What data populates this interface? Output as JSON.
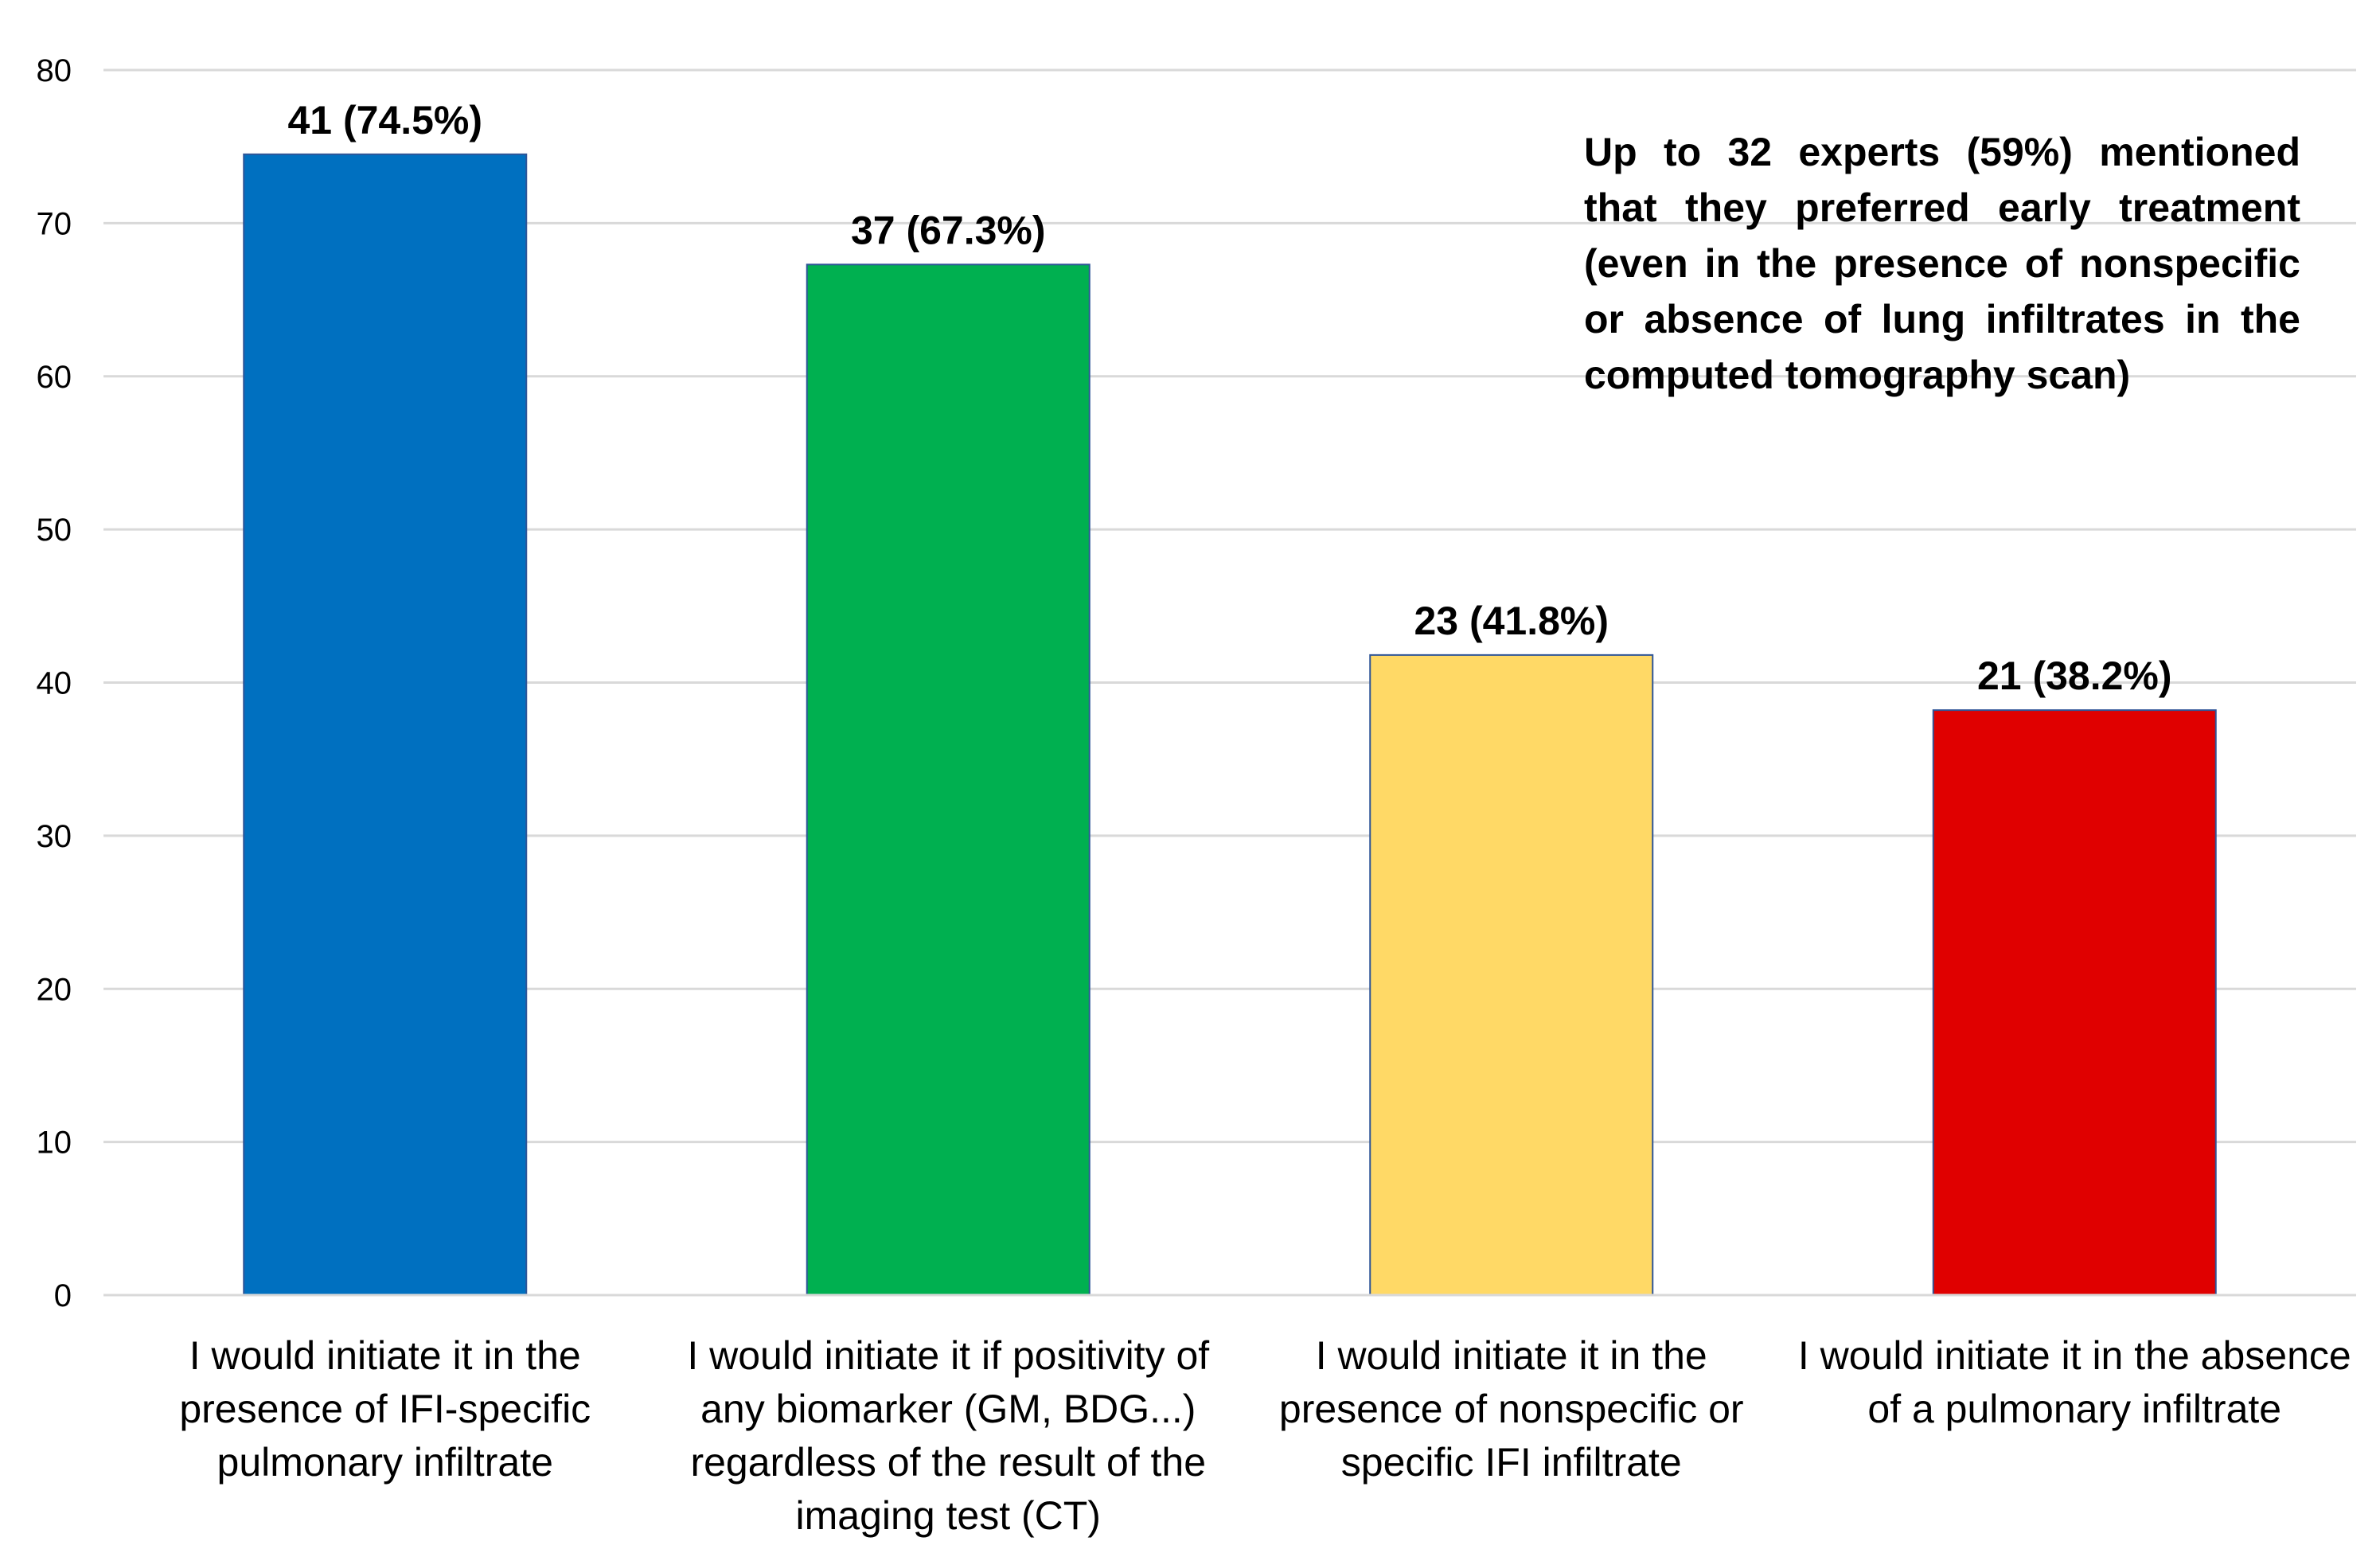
{
  "chart_data": {
    "type": "bar",
    "title": "",
    "xlabel": "",
    "ylabel": "",
    "ylim": [
      0,
      80
    ],
    "yticks": [
      0,
      10,
      20,
      30,
      40,
      50,
      60,
      70,
      80
    ],
    "grid": true,
    "categories": [
      [
        "I would initiate it in the",
        "presence of IFI-specific",
        "pulmonary infiltrate"
      ],
      [
        "I would initiate it if positivity of",
        "any biomarker (GM, BDG...)",
        "regardless of the result of the",
        "imaging test (CT)"
      ],
      [
        "I would initiate it in the",
        "presence of nonspecific or",
        "specific IFI infiltrate"
      ],
      [
        "I would initiate it in the absence",
        "of a pulmonary infiltrate"
      ]
    ],
    "values": [
      74.5,
      67.3,
      41.8,
      38.2
    ],
    "data_labels": [
      "41 (74.5%)",
      "37 (67.3%)",
      "23 (41.8%)",
      "21 (38.2%)"
    ],
    "colors": [
      "#0070C0",
      "#00B050",
      "#FFD966",
      "#E00000"
    ],
    "annotation": "Up to 32 experts (59%) mentioned that they preferred early treatment (even in the presence of nonspecific or absence of lung infiltrates in the computed tomography scan)"
  }
}
